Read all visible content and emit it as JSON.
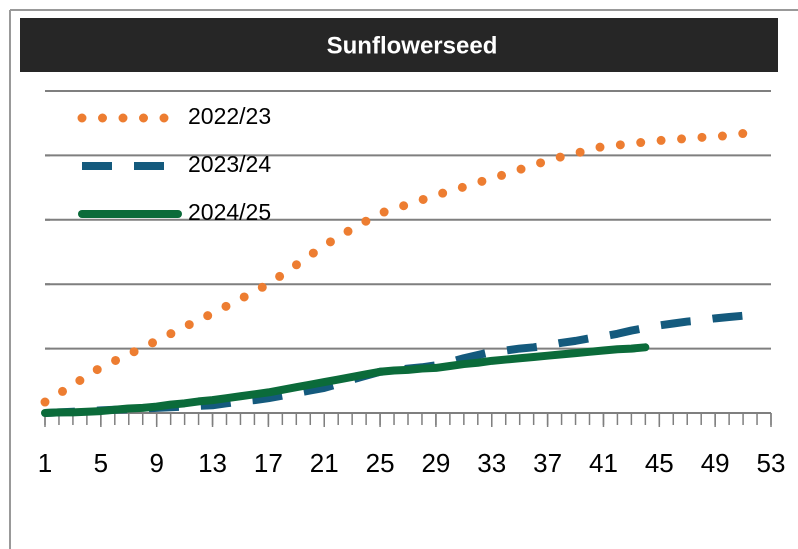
{
  "chart_data": {
    "type": "line",
    "title": "Sunflowerseed",
    "x": [
      1,
      2,
      3,
      4,
      5,
      6,
      7,
      8,
      9,
      10,
      11,
      12,
      13,
      14,
      15,
      16,
      17,
      18,
      19,
      20,
      21,
      22,
      23,
      24,
      25,
      26,
      27,
      28,
      29,
      30,
      31,
      32,
      33,
      34,
      35,
      36,
      37,
      38,
      39,
      40,
      41,
      42,
      43,
      44,
      45,
      46,
      47,
      48,
      49,
      50,
      51,
      52
    ],
    "xlim": [
      1,
      53
    ],
    "xticks": [
      1,
      5,
      9,
      13,
      17,
      21,
      25,
      29,
      33,
      37,
      41,
      45,
      49,
      53
    ],
    "ylim": [
      0,
      5
    ],
    "yticks": [
      0,
      1,
      2,
      3,
      4,
      5
    ],
    "grid": true,
    "legend": "upper left",
    "series": [
      {
        "name": "2022/23",
        "color": "#ED7D31",
        "dash": "dotted",
        "values": [
          0.17,
          0.3,
          0.44,
          0.57,
          0.71,
          0.81,
          0.91,
          1.02,
          1.12,
          1.23,
          1.34,
          1.44,
          1.55,
          1.66,
          1.77,
          1.89,
          2.0,
          2.15,
          2.3,
          2.45,
          2.6,
          2.73,
          2.86,
          2.98,
          3.1,
          3.17,
          3.24,
          3.31,
          3.38,
          3.45,
          3.51,
          3.58,
          3.64,
          3.71,
          3.78,
          3.85,
          3.92,
          3.98,
          4.03,
          4.09,
          4.14,
          4.16,
          4.18,
          4.21,
          4.23,
          4.25,
          4.26,
          4.28,
          4.29,
          4.31,
          4.34,
          4.37
        ]
      },
      {
        "name": "2023/24",
        "color": "#145A7D",
        "dash": "dashed",
        "values": [
          0,
          0.01,
          0.02,
          0.03,
          0.04,
          0.05,
          0.06,
          0.07,
          0.08,
          0.09,
          0.1,
          0.11,
          0.12,
          0.15,
          0.18,
          0.2,
          0.23,
          0.27,
          0.31,
          0.35,
          0.39,
          0.45,
          0.52,
          0.58,
          0.64,
          0.66,
          0.69,
          0.71,
          0.74,
          0.79,
          0.85,
          0.9,
          0.95,
          0.97,
          1.0,
          1.02,
          1.05,
          1.09,
          1.12,
          1.16,
          1.19,
          1.23,
          1.28,
          1.32,
          1.36,
          1.39,
          1.42,
          1.44,
          1.47,
          1.49,
          1.51,
          1.52
        ]
      },
      {
        "name": "2024/25",
        "color": "#0B6B3A",
        "dash": "solid",
        "values": [
          0,
          0.01,
          0.01,
          0.02,
          0.03,
          0.05,
          0.07,
          0.08,
          0.1,
          0.13,
          0.15,
          0.18,
          0.2,
          0.23,
          0.26,
          0.29,
          0.32,
          0.36,
          0.4,
          0.44,
          0.48,
          0.52,
          0.56,
          0.6,
          0.64,
          0.66,
          0.67,
          0.69,
          0.7,
          0.73,
          0.76,
          0.78,
          0.81,
          0.83,
          0.85,
          0.87,
          0.89,
          0.91,
          0.93,
          0.95,
          0.97,
          0.99,
          1.0,
          1.02,
          null,
          null,
          null,
          null,
          null,
          null,
          null,
          null
        ]
      }
    ]
  }
}
